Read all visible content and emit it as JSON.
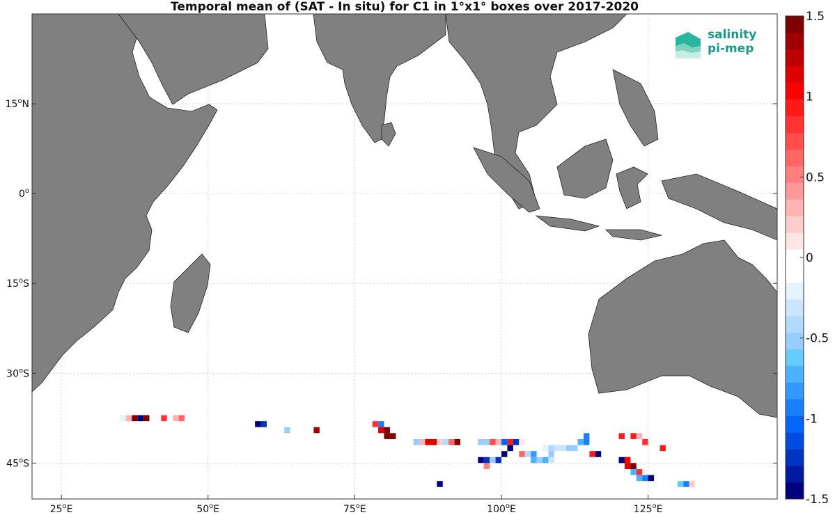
{
  "title": "Temporal mean of (SAT - In situ) for C1 in 1°x1° boxes over 2017-2020",
  "map": {
    "lon_range": [
      20,
      147
    ],
    "lat_range": [
      -51,
      30
    ],
    "x_ticks": [
      {
        "lon": 25,
        "deg": "25",
        "suf": "E"
      },
      {
        "lon": 50,
        "deg": "50",
        "suf": "E"
      },
      {
        "lon": 75,
        "deg": "75",
        "suf": "E"
      },
      {
        "lon": 100,
        "deg": "100",
        "suf": "E"
      },
      {
        "lon": 125,
        "deg": "125",
        "suf": "E"
      }
    ],
    "y_ticks": [
      {
        "lat": 15,
        "deg": "15",
        "suf": "N"
      },
      {
        "lat": 0,
        "deg": "0",
        "suf": ""
      },
      {
        "lat": -15,
        "deg": "15",
        "suf": "S"
      },
      {
        "lat": -30,
        "deg": "30",
        "suf": "S"
      },
      {
        "lat": -45,
        "deg": "45",
        "suf": "S"
      }
    ],
    "grid": true,
    "land_color": "#808080"
  },
  "colorbar": {
    "range": [
      -1.5,
      1.5
    ],
    "ticks": [
      "-1.5",
      "-1",
      "-0.5",
      "0",
      "0.5",
      "1",
      "1.5"
    ],
    "colors": [
      "#00007f",
      "#001a9f",
      "#0033bf",
      "#004cdf",
      "#0066ff",
      "#1a7fff",
      "#3399ff",
      "#4cb2ff",
      "#66ccff",
      "#99ccff",
      "#b2d9ff",
      "#cce5ff",
      "#e5f2ff",
      "#ffffff",
      "#ffffff",
      "#ffe5e5",
      "#ffcccc",
      "#ffb2b2",
      "#ff9999",
      "#ff7f7f",
      "#ff6666",
      "#ff4c4c",
      "#ff3333",
      "#ff1a1a",
      "#ff0000",
      "#df0000",
      "#bf0000",
      "#9f0000",
      "#7f0000"
    ]
  },
  "logo": {
    "line1": "salinity",
    "line2": "pi-mep"
  },
  "boxes": [
    {
      "lon": 35,
      "lat": -38,
      "v": -0.25
    },
    {
      "lon": 36,
      "lat": -38,
      "v": 0.35
    },
    {
      "lon": 37,
      "lat": -38,
      "v": 1.6
    },
    {
      "lon": 38,
      "lat": -38,
      "v": -1.5
    },
    {
      "lon": 39,
      "lat": -38,
      "v": 1.5
    },
    {
      "lon": 42,
      "lat": -38,
      "v": 0.8
    },
    {
      "lon": 44,
      "lat": -38,
      "v": 0.3
    },
    {
      "lon": 45,
      "lat": -38,
      "v": 0.6
    },
    {
      "lon": 58,
      "lat": -39,
      "v": -1.4
    },
    {
      "lon": 59,
      "lat": -39,
      "v": -1.2
    },
    {
      "lon": 63,
      "lat": -40,
      "v": -0.5
    },
    {
      "lon": 65,
      "lat": -40,
      "v": -0.15
    },
    {
      "lon": 68,
      "lat": -40,
      "v": 1.3
    },
    {
      "lon": 78,
      "lat": -39,
      "v": 0.8
    },
    {
      "lon": 79,
      "lat": -39,
      "v": -0.9
    },
    {
      "lon": 79,
      "lat": -40,
      "v": 1.1
    },
    {
      "lon": 80,
      "lat": -40,
      "v": 1.5
    },
    {
      "lon": 80,
      "lat": -41,
      "v": 1.6
    },
    {
      "lon": 81,
      "lat": -41,
      "v": 1.6
    },
    {
      "lon": 85,
      "lat": -42,
      "v": -0.5
    },
    {
      "lon": 86,
      "lat": -42,
      "v": 0.3
    },
    {
      "lon": 87,
      "lat": -42,
      "v": 1.1
    },
    {
      "lon": 88,
      "lat": -42,
      "v": 1.1
    },
    {
      "lon": 89,
      "lat": -42,
      "v": 0.2
    },
    {
      "lon": 90,
      "lat": -42,
      "v": -0.4
    },
    {
      "lon": 91,
      "lat": -42,
      "v": 0.6
    },
    {
      "lon": 92,
      "lat": -42,
      "v": 1.6
    },
    {
      "lon": 96,
      "lat": -42,
      "v": -0.5
    },
    {
      "lon": 97,
      "lat": -42,
      "v": -0.5
    },
    {
      "lon": 98,
      "lat": -42,
      "v": 0.7
    },
    {
      "lon": 99,
      "lat": -42,
      "v": 0.3
    },
    {
      "lon": 100,
      "lat": -42,
      "v": -1.0
    },
    {
      "lon": 101,
      "lat": -42,
      "v": 0.9
    },
    {
      "lon": 102,
      "lat": -42,
      "v": -1.2
    },
    {
      "lon": 103,
      "lat": -42,
      "v": 0.15
    },
    {
      "lon": 101,
      "lat": -43,
      "v": -1.5
    },
    {
      "lon": 107,
      "lat": -43,
      "v": -0.25
    },
    {
      "lon": 108,
      "lat": -43,
      "v": -0.4
    },
    {
      "lon": 109,
      "lat": -43,
      "v": -0.3
    },
    {
      "lon": 110,
      "lat": -43,
      "v": -0.35
    },
    {
      "lon": 111,
      "lat": -43,
      "v": -0.5
    },
    {
      "lon": 112,
      "lat": -43,
      "v": -0.5
    },
    {
      "lon": 113,
      "lat": -42,
      "v": -0.7
    },
    {
      "lon": 114,
      "lat": -41,
      "v": -0.9
    },
    {
      "lon": 114,
      "lat": -42,
      "v": -0.9
    },
    {
      "lon": 103,
      "lat": -44,
      "v": 0.6
    },
    {
      "lon": 104,
      "lat": -44,
      "v": -0.4
    },
    {
      "lon": 105,
      "lat": -44,
      "v": -0.8
    },
    {
      "lon": 108,
      "lat": -44,
      "v": -0.5
    },
    {
      "lon": 105,
      "lat": -45,
      "v": -0.7
    },
    {
      "lon": 106,
      "lat": -45,
      "v": -0.5
    },
    {
      "lon": 107,
      "lat": -45,
      "v": -0.7
    },
    {
      "lon": 108,
      "lat": -45,
      "v": -0.3
    },
    {
      "lon": 96,
      "lat": -45,
      "v": -1.4
    },
    {
      "lon": 97,
      "lat": -45,
      "v": -1.2
    },
    {
      "lon": 98,
      "lat": -45,
      "v": -0.5
    },
    {
      "lon": 99,
      "lat": -45,
      "v": -1.2
    },
    {
      "lon": 100,
      "lat": -44,
      "v": -1.4
    },
    {
      "lon": 96,
      "lat": -46,
      "v": -0.15
    },
    {
      "lon": 97,
      "lat": -46,
      "v": 0.5
    },
    {
      "lon": 115,
      "lat": -44,
      "v": 0.9
    },
    {
      "lon": 116,
      "lat": -44,
      "v": -1.5
    },
    {
      "lon": 120,
      "lat": -41,
      "v": 0.9
    },
    {
      "lon": 122,
      "lat": -41,
      "v": 0.9
    },
    {
      "lon": 123,
      "lat": -41,
      "v": 0.3
    },
    {
      "lon": 124,
      "lat": -42,
      "v": 0.8
    },
    {
      "lon": 127,
      "lat": -43,
      "v": 0.9
    },
    {
      "lon": 120,
      "lat": -45,
      "v": -1.4
    },
    {
      "lon": 121,
      "lat": -45,
      "v": 1.0
    },
    {
      "lon": 121,
      "lat": -46,
      "v": 1.1
    },
    {
      "lon": 122,
      "lat": -46,
      "v": 1.6
    },
    {
      "lon": 122,
      "lat": -47,
      "v": -0.7
    },
    {
      "lon": 123,
      "lat": -47,
      "v": 0.8
    },
    {
      "lon": 123,
      "lat": -48,
      "v": -0.7
    },
    {
      "lon": 124,
      "lat": -48,
      "v": -0.9
    },
    {
      "lon": 125,
      "lat": -48,
      "v": -1.5
    },
    {
      "lon": 89,
      "lat": -49,
      "v": -1.5
    },
    {
      "lon": 130,
      "lat": -49,
      "v": -0.6
    },
    {
      "lon": 131,
      "lat": -49,
      "v": -0.9
    },
    {
      "lon": 132,
      "lat": -49,
      "v": 0.2
    }
  ]
}
